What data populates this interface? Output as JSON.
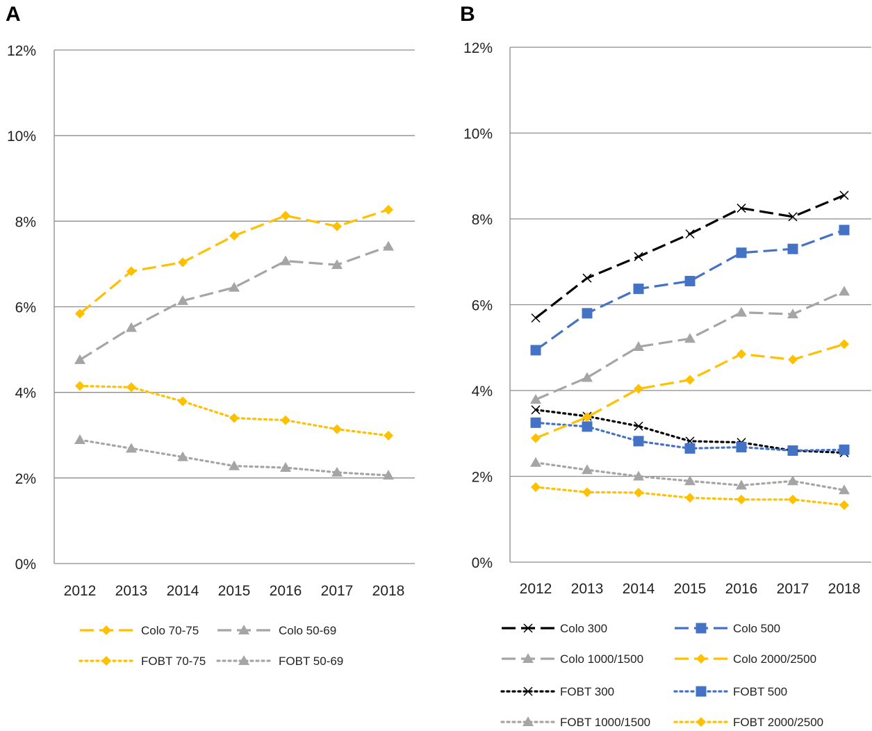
{
  "chart_data": [
    {
      "panel": "A",
      "type": "line",
      "categories": [
        "2012",
        "2013",
        "2014",
        "2015",
        "2016",
        "2017",
        "2018"
      ],
      "ylim": [
        0,
        12
      ],
      "yticks": [
        "0%",
        "2%",
        "4%",
        "6%",
        "8%",
        "10%",
        "12%"
      ],
      "grid": true,
      "legend_position": "bottom",
      "series": [
        {
          "name": "Colo 70-75",
          "color": "#FFC000",
          "dash": "dashed",
          "marker": "diamond",
          "values": [
            5.84,
            6.83,
            7.04,
            7.66,
            8.13,
            7.88,
            8.27
          ]
        },
        {
          "name": "Colo 50-69",
          "color": "#A5A5A5",
          "dash": "dashed",
          "marker": "triangle",
          "values": [
            4.76,
            5.51,
            6.14,
            6.45,
            7.07,
            6.98,
            7.41
          ]
        },
        {
          "name": "FOBT 70-75",
          "color": "#FFC000",
          "dash": "dotted",
          "marker": "diamond",
          "values": [
            4.15,
            4.12,
            3.79,
            3.4,
            3.35,
            3.14,
            2.99
          ]
        },
        {
          "name": "FOBT 50-69",
          "color": "#A5A5A5",
          "dash": "dotted",
          "marker": "triangle",
          "values": [
            2.89,
            2.69,
            2.49,
            2.28,
            2.24,
            2.13,
            2.06
          ]
        }
      ]
    },
    {
      "panel": "B",
      "type": "line",
      "categories": [
        "2012",
        "2013",
        "2014",
        "2015",
        "2016",
        "2017",
        "2018"
      ],
      "ylim": [
        0,
        12
      ],
      "yticks": [
        "0%",
        "2%",
        "4%",
        "6%",
        "8%",
        "10%",
        "12%"
      ],
      "grid": true,
      "legend_position": "bottom",
      "series": [
        {
          "name": "Colo 300",
          "color": "#000000",
          "dash": "dashed",
          "marker": "x",
          "values": [
            5.69,
            6.62,
            7.12,
            7.65,
            8.25,
            8.05,
            8.55
          ]
        },
        {
          "name": "Colo 500",
          "color": "#4472C4",
          "dash": "dashed",
          "marker": "square",
          "values": [
            4.94,
            5.8,
            6.37,
            6.55,
            7.21,
            7.3,
            7.74
          ]
        },
        {
          "name": "Colo 1000/1500",
          "color": "#A5A5A5",
          "dash": "dashed",
          "marker": "triangle",
          "values": [
            3.79,
            4.3,
            5.02,
            5.21,
            5.82,
            5.78,
            6.31
          ]
        },
        {
          "name": "Colo 2000/2500",
          "color": "#FFC000",
          "dash": "dashed",
          "marker": "diamond",
          "values": [
            2.89,
            3.38,
            4.04,
            4.25,
            4.85,
            4.72,
            5.08
          ]
        },
        {
          "name": "FOBT 300",
          "color": "#000000",
          "dash": "dotted",
          "marker": "x",
          "values": [
            3.55,
            3.4,
            3.17,
            2.82,
            2.79,
            2.6,
            2.55
          ]
        },
        {
          "name": "FOBT 500",
          "color": "#4472C4",
          "dash": "dotted",
          "marker": "square",
          "values": [
            3.25,
            3.16,
            2.82,
            2.65,
            2.68,
            2.6,
            2.62
          ]
        },
        {
          "name": "FOBT 1000/1500",
          "color": "#A5A5A5",
          "dash": "dotted",
          "marker": "triangle",
          "values": [
            2.32,
            2.15,
            2.0,
            1.89,
            1.79,
            1.89,
            1.68
          ]
        },
        {
          "name": "FOBT 2000/2500",
          "color": "#FFC000",
          "dash": "dotted",
          "marker": "diamond",
          "values": [
            1.75,
            1.63,
            1.62,
            1.5,
            1.46,
            1.46,
            1.33
          ]
        }
      ]
    }
  ]
}
